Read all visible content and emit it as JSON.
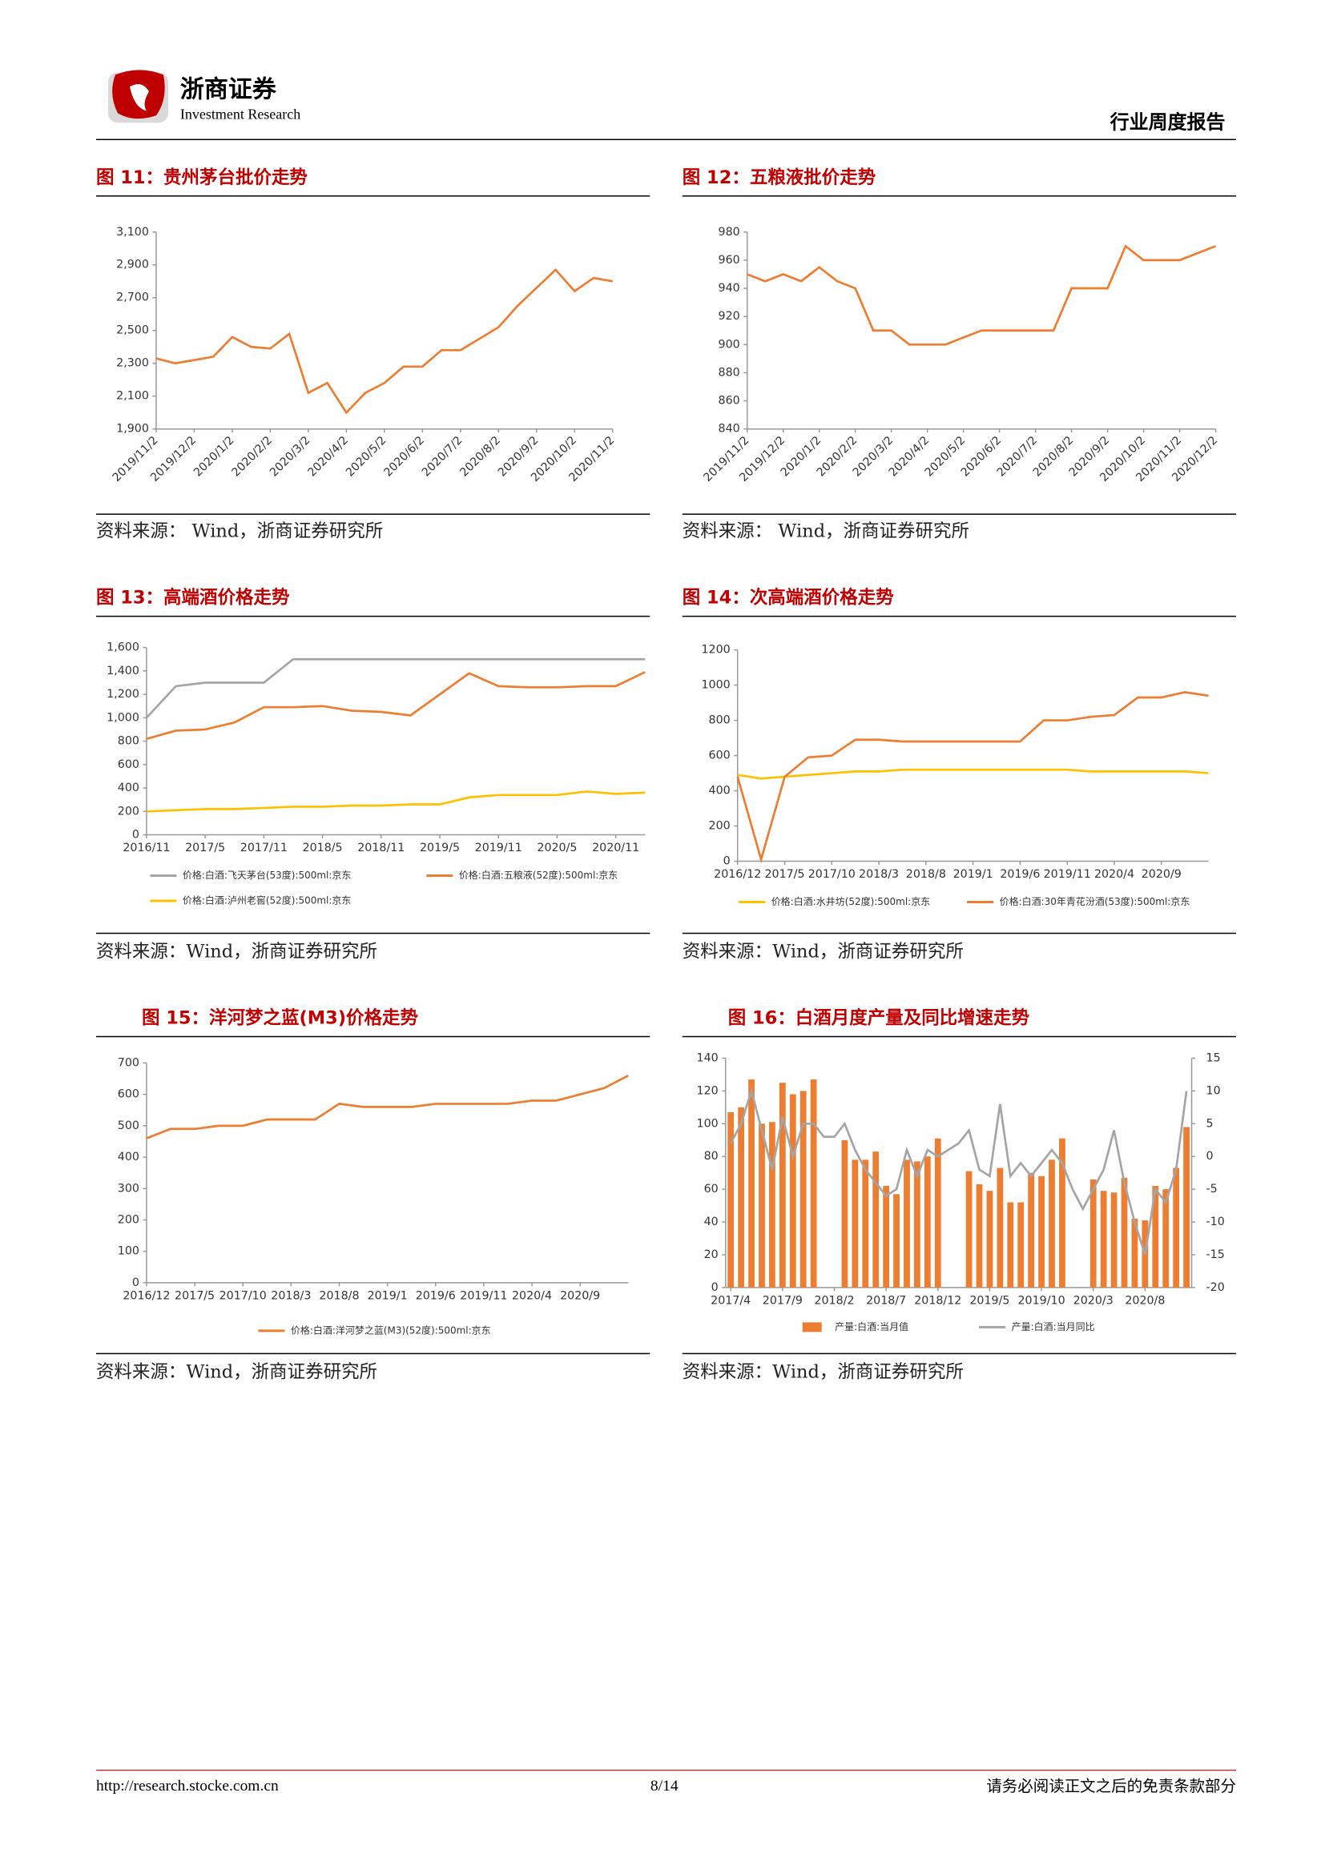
{
  "header": {
    "company": "浙商证券",
    "company_en": "Investment Research",
    "report_type": "行业周度报告"
  },
  "chart_data": [
    {
      "type": "line",
      "title": "图 11：贵州茅台批价走势",
      "source": "资料来源：  Wind，浙商证券研究所",
      "color": "#ed7d31",
      "categories": [
        "2019/11/2",
        null,
        "2019/12/2",
        null,
        "2020/1/2",
        null,
        "2020/2/2",
        null,
        "2020/3/2",
        null,
        "2020/4/2",
        null,
        "2020/5/2",
        null,
        "2020/6/2",
        null,
        "2020/7/2",
        null,
        "2020/8/2",
        null,
        "2020/9/2",
        null,
        "2020/10/2",
        null,
        "2020/11/2"
      ],
      "values": [
        2330,
        2300,
        2320,
        2340,
        2460,
        2400,
        2390,
        2480,
        2120,
        2180,
        2000,
        2120,
        2180,
        2280,
        2280,
        2380,
        2380,
        2450,
        2520,
        2650,
        2760,
        2870,
        2740,
        2820,
        2800
      ],
      "ylim": [
        1900,
        3100
      ],
      "yticks": [
        {
          "value": 1900,
          "label": "1,900"
        },
        {
          "value": 2100,
          "label": "2,100"
        },
        {
          "value": 2300,
          "label": "2,300"
        },
        {
          "value": 2500,
          "label": "2,500"
        },
        {
          "value": 2700,
          "label": "2,700"
        },
        {
          "value": 2900,
          "label": "2,900"
        },
        {
          "value": 3100,
          "label": "3,100"
        }
      ]
    },
    {
      "type": "line",
      "title": "图 12：五粮液批价走势",
      "source": "资料来源：  Wind，浙商证券研究所",
      "color": "#ed7d31",
      "categories": [
        "2019/11/2",
        null,
        "2019/12/2",
        null,
        "2020/1/2",
        null,
        "2020/2/2",
        null,
        "2020/3/2",
        null,
        "2020/4/2",
        null,
        "2020/5/2",
        null,
        "2020/6/2",
        null,
        "2020/7/2",
        null,
        "2020/8/2",
        null,
        "2020/9/2",
        null,
        "2020/10/2",
        null,
        "2020/11/2",
        null,
        "2020/12/2"
      ],
      "values": [
        950,
        945,
        950,
        945,
        955,
        945,
        940,
        910,
        910,
        900,
        900,
        900,
        905,
        910,
        910,
        910,
        910,
        910,
        940,
        940,
        940,
        970,
        960,
        960,
        960,
        965,
        970
      ],
      "ylim": [
        840,
        980
      ],
      "yticks": [
        840,
        860,
        880,
        900,
        920,
        940,
        960,
        980
      ]
    },
    {
      "type": "line",
      "title": "图 13：高端酒价格走势",
      "source": "资料来源：Wind，浙商证券研究所",
      "categories": [
        "2016/11",
        null,
        "2017/5",
        null,
        "2017/11",
        null,
        "2018/5",
        null,
        "2018/11",
        null,
        "2019/5",
        null,
        "2019/11",
        null,
        "2020/5",
        null,
        "2020/11",
        null
      ],
      "series": [
        {
          "name": "价格:白酒:飞天茅台(53度):500ml:京东",
          "color": "#a5a5a5",
          "values": [
            1000,
            1270,
            1300,
            1300,
            1300,
            1500,
            1500,
            1500,
            1500,
            1500,
            1500,
            1500,
            1500,
            1500,
            1500,
            1500,
            1500,
            1500
          ]
        },
        {
          "name": "价格:白酒:五粮液(52度):500ml:京东",
          "color": "#ed7d31",
          "values": [
            820,
            890,
            900,
            960,
            1090,
            1090,
            1100,
            1060,
            1050,
            1020,
            1200,
            1380,
            1270,
            1260,
            1260,
            1270,
            1270,
            1390
          ]
        },
        {
          "name": "价格:白酒:泸州老窖(52度):500ml:京东",
          "color": "#ffc000",
          "values": [
            200,
            210,
            220,
            220,
            230,
            240,
            240,
            250,
            250,
            260,
            260,
            320,
            340,
            340,
            340,
            370,
            350,
            360
          ]
        }
      ],
      "ylim": [
        0,
        1600
      ],
      "yticks": [
        0,
        200,
        400,
        600,
        800,
        {
          "value": 1000,
          "label": "1,000"
        },
        {
          "value": 1200,
          "label": "1,200"
        },
        {
          "value": 1400,
          "label": "1,400"
        },
        {
          "value": 1600,
          "label": "1,600"
        }
      ]
    },
    {
      "type": "line",
      "title": "图 14：次高端酒价格走势",
      "source": "资料来源：Wind，浙商证券研究所",
      "categories": [
        "2016/12",
        null,
        "2017/5",
        null,
        "2017/10",
        null,
        "2018/3",
        null,
        "2018/8",
        null,
        "2019/1",
        null,
        "2019/6",
        null,
        "2019/11",
        null,
        "2020/4",
        null,
        "2020/9",
        null,
        null
      ],
      "series": [
        {
          "name": "价格:白酒:水井坊(52度):500ml:京东",
          "color": "#ffc000",
          "values": [
            490,
            470,
            480,
            490,
            500,
            510,
            510,
            520,
            520,
            520,
            520,
            520,
            520,
            520,
            520,
            510,
            510,
            510,
            510,
            510,
            500
          ]
        },
        {
          "name": "价格:白酒:30年青花汾酒(53度):500ml:京东",
          "color": "#ed7d31",
          "values": [
            480,
            10,
            480,
            590,
            600,
            690,
            690,
            680,
            680,
            680,
            680,
            680,
            680,
            800,
            800,
            820,
            830,
            930,
            930,
            960,
            940
          ]
        }
      ],
      "ylim": [
        0,
        1200
      ],
      "yticks": [
        0,
        200,
        400,
        600,
        800,
        1000,
        1200
      ]
    },
    {
      "type": "line",
      "title": "图 15：洋河梦之蓝(M3)价格走势",
      "source": "资料来源：Wind，浙商证券研究所",
      "categories": [
        "2016/12",
        null,
        "2017/5",
        null,
        "2017/10",
        null,
        "2018/3",
        null,
        "2018/8",
        null,
        "2019/1",
        null,
        "2019/6",
        null,
        "2019/11",
        null,
        "2020/4",
        null,
        "2020/9",
        null,
        null
      ],
      "series": [
        {
          "name": "价格:白酒:洋河梦之蓝(M3)(52度):500ml:京东",
          "color": "#ed7d31",
          "values": [
            460,
            490,
            490,
            500,
            500,
            520,
            520,
            520,
            570,
            560,
            560,
            560,
            570,
            570,
            570,
            570,
            580,
            580,
            600,
            620,
            660
          ]
        }
      ],
      "ylim": [
        0,
        700
      ],
      "yticks": [
        0,
        100,
        200,
        300,
        400,
        500,
        600,
        700
      ]
    },
    {
      "type": "combo",
      "title": "图 16：白酒月度产量及同比增速走势",
      "source": "资料来源：Wind，浙商证券研究所",
      "categories": [
        "2017/4",
        null,
        null,
        null,
        null,
        "2017/9",
        null,
        null,
        null,
        null,
        "2018/2",
        null,
        null,
        null,
        null,
        "2018/7",
        null,
        null,
        null,
        null,
        "2018/12",
        null,
        null,
        null,
        null,
        "2019/5",
        null,
        null,
        null,
        null,
        "2019/10",
        null,
        null,
        null,
        null,
        "2020/3",
        null,
        null,
        null,
        null,
        "2020/8",
        null,
        null,
        null,
        null
      ],
      "series": [
        {
          "name": "产量:白酒:当月值",
          "type": "bar",
          "color": "#ed7d31",
          "values": [
            107,
            110,
            127,
            100,
            101,
            125,
            118,
            120,
            127,
            null,
            null,
            90,
            78,
            78,
            83,
            62,
            57,
            78,
            77,
            80,
            91,
            null,
            null,
            71,
            63,
            59,
            73,
            52,
            52,
            70,
            68,
            78,
            91,
            null,
            null,
            66,
            59,
            58,
            67,
            42,
            41,
            62,
            60,
            73,
            98
          ]
        },
        {
          "name": "产量:白酒:当月同比",
          "type": "line",
          "axis": "y2",
          "color": "#a5a5a5",
          "values": [
            2,
            5,
            10,
            4,
            -2,
            6,
            0,
            5,
            5,
            3,
            3,
            5,
            1,
            -2,
            -4,
            -6,
            -5,
            1,
            -3,
            1,
            0,
            1,
            2,
            4,
            -2,
            -3,
            8,
            -3,
            -1,
            -3,
            -1,
            1,
            -1,
            -5,
            -8,
            -5,
            -2,
            4,
            -4,
            -10,
            -15,
            -5,
            -7,
            -2,
            10
          ]
        }
      ],
      "ylim": [
        0,
        140
      ],
      "yticks": [
        0,
        20,
        40,
        60,
        80,
        100,
        120,
        140
      ],
      "y2lim": [
        -20,
        15
      ],
      "y2ticks": [
        -20,
        -15,
        -10,
        -5,
        0,
        5,
        10,
        15
      ]
    }
  ],
  "footer": {
    "url": "http://research.stocke.com.cn",
    "page": "8/14",
    "disclaimer": "请务必阅读正文之后的免责条款部分"
  }
}
